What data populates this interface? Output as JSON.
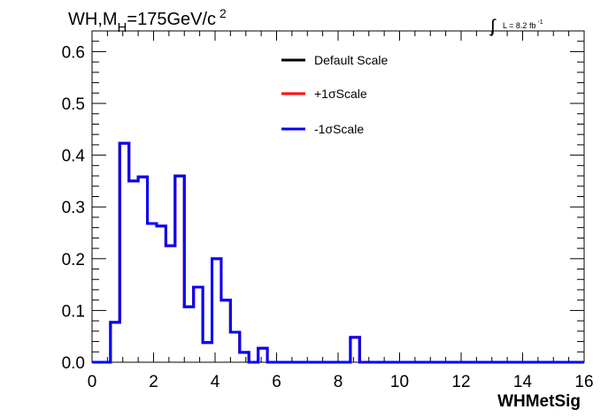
{
  "header": {
    "title_main": "WH,M",
    "title_sub": "H",
    "title_rest": "=175GeV/c",
    "title_sup": "2",
    "lumi_label": "L = 8.2 fb",
    "lumi_sup": "-1",
    "integral_symbol": "∫"
  },
  "colors": {
    "default": "#000000",
    "plus": "#ff0000",
    "minus": "#0000ff",
    "axis": "#000000"
  },
  "chart_data": {
    "type": "line",
    "xlabel": "WHMetSig",
    "ylabel": "",
    "xlim": [
      0,
      16
    ],
    "ylim": [
      0,
      0.64
    ],
    "x_ticks": [
      0,
      2,
      4,
      6,
      8,
      10,
      12,
      14,
      16
    ],
    "x_tick_labels": [
      "0",
      "2",
      "4",
      "6",
      "8",
      "10",
      "12",
      "14",
      "16"
    ],
    "y_ticks": [
      0,
      0.1,
      0.2,
      0.3,
      0.4,
      0.5,
      0.6
    ],
    "y_tick_labels": [
      "0.0",
      "0.1",
      "0.2",
      "0.3",
      "0.4",
      "0.5",
      "0.6"
    ],
    "bin_edges": [
      0,
      0.3,
      0.6,
      0.9,
      1.2,
      1.5,
      1.8,
      2.1,
      2.4,
      2.7,
      3.0,
      3.3,
      3.6,
      3.9,
      4.2,
      4.5,
      4.8,
      5.1,
      5.4,
      5.7,
      6.0,
      6.3,
      6.6,
      6.9,
      7.2,
      7.5,
      7.8,
      8.1,
      8.4,
      8.7,
      9.0,
      16.0
    ],
    "series": [
      {
        "name": "Default Scale",
        "color": "#000000",
        "values": [
          0,
          0,
          0.077,
          0.423,
          0.35,
          0.358,
          0.268,
          0.263,
          0.225,
          0.36,
          0.107,
          0.145,
          0.038,
          0.2,
          0.12,
          0.058,
          0.019,
          0,
          0.027,
          0,
          0,
          0,
          0,
          0,
          0,
          0,
          0,
          0,
          0.048,
          0,
          0
        ]
      },
      {
        "name": "+1σScale",
        "color": "#ff0000",
        "values": [
          0,
          0,
          0.077,
          0.423,
          0.35,
          0.358,
          0.268,
          0.263,
          0.225,
          0.36,
          0.107,
          0.145,
          0.038,
          0.2,
          0.12,
          0.058,
          0.019,
          0,
          0.027,
          0,
          0,
          0,
          0,
          0,
          0,
          0,
          0,
          0,
          0.048,
          0,
          0
        ]
      },
      {
        "name": "-1σScale",
        "color": "#0000ff",
        "values": [
          0,
          0,
          0.077,
          0.423,
          0.35,
          0.358,
          0.268,
          0.263,
          0.225,
          0.36,
          0.107,
          0.145,
          0.038,
          0.2,
          0.12,
          0.058,
          0.019,
          0,
          0.027,
          0,
          0,
          0,
          0,
          0,
          0,
          0,
          0,
          0,
          0.048,
          0,
          0
        ]
      }
    ],
    "legend": {
      "position": "top-center",
      "entries": [
        "Default Scale",
        "+1σScale",
        "-1σScale"
      ]
    },
    "grid": false
  }
}
